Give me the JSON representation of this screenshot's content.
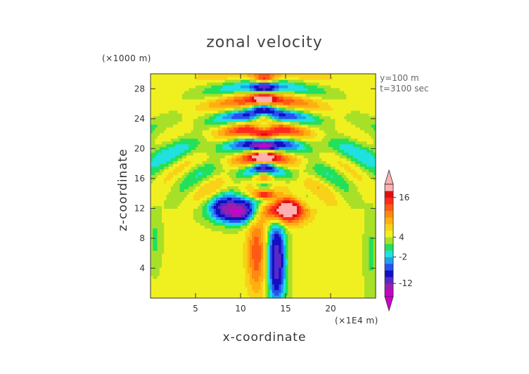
{
  "chart_data": {
    "type": "heatmap",
    "title": "zonal velocity",
    "xlabel": "x-coordinate",
    "ylabel": "z-coordinate",
    "x_unit": "(×1E4 m)",
    "y_unit": "(×1000 m)",
    "annotations": [
      "y=100 m",
      "t=3100 sec"
    ],
    "xlim": [
      0,
      25
    ],
    "ylim": [
      0,
      30
    ],
    "x_ticks": [
      5,
      10,
      15,
      20
    ],
    "y_ticks": [
      4,
      8,
      12,
      16,
      20,
      24,
      28
    ],
    "colorbar": {
      "labels": [
        16,
        4,
        -2,
        -12
      ],
      "levels": [
        -18,
        -15,
        -12,
        -9,
        -6,
        -4,
        -2,
        0,
        2,
        4,
        6,
        8,
        10,
        12,
        14,
        16,
        18,
        20
      ],
      "colors": [
        "#cc00cc",
        "#9b1fae",
        "#5a28c8",
        "#1010c0",
        "#2a50f0",
        "#1ea0f0",
        "#20e0e0",
        "#22e05a",
        "#a8e028",
        "#f0f020",
        "#f8d218",
        "#ffb010",
        "#ff8a10",
        "#ff5a14",
        "#ff2a1c",
        "#e01010",
        "#ffb0b0"
      ],
      "under_color": "#cc00cc",
      "over_color": "#ffb0b0"
    }
  }
}
